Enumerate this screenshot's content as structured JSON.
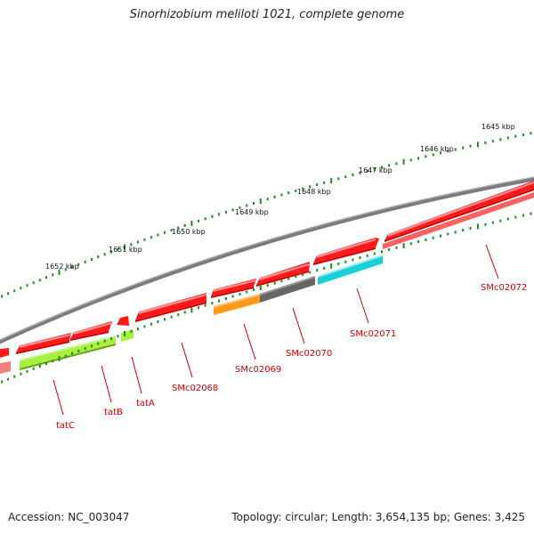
{
  "title": "Sinorhizobium meliloti 1021, complete genome",
  "footer": {
    "accession": "Accession: NC_003047",
    "summary": "Topology: circular; Length: 3,654,135 bp; Genes: 3,425"
  },
  "colors": {
    "backbone": "#7d7b7f",
    "tick": "#1f8a1f",
    "label": "#d40000",
    "gene_red": "#ff1a1a",
    "gene_lime": "#a8f040",
    "gene_orange": "#ff9a1a",
    "gene_gray": "#666666",
    "gene_cyan": "#1ad0d8",
    "gene_pink": "#f08080"
  },
  "scale_ticks": [
    "1645 kbp",
    "1646 kbp",
    "1647 kbp",
    "1648 kbp",
    "1649 kbp",
    "1650 kbp",
    "1651 kbp",
    "1652 kbp"
  ],
  "gene_labels": [
    "SMc02072",
    "SMc02071",
    "SMc02070",
    "SMc02069",
    "SMc02068",
    "tatA",
    "tatB",
    "tatC"
  ]
}
